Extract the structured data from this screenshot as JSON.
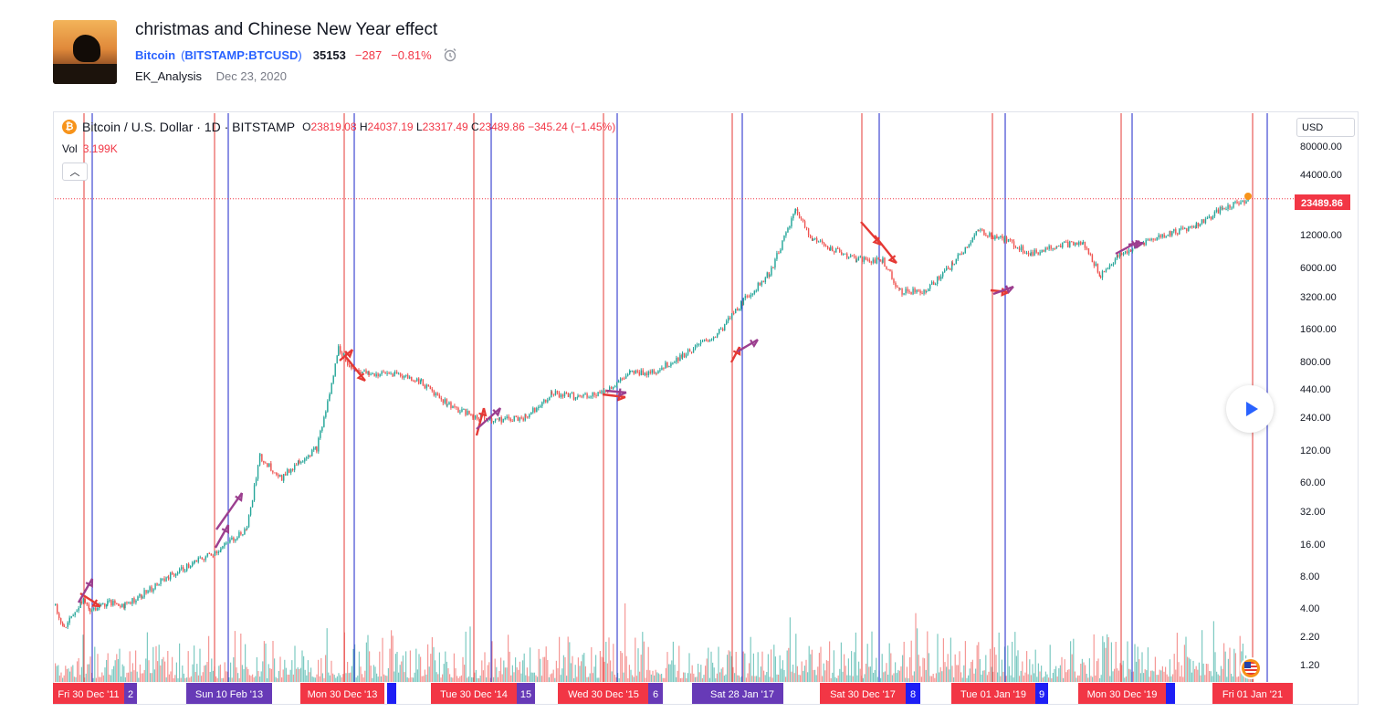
{
  "idea": {
    "title": "christmas and Chinese New Year effect",
    "symbol_name": "Bitcoin",
    "symbol_exchange": "BITSTAMP:BTCUSD",
    "price": "35153",
    "change": "−287",
    "change_pct": "−0.81%",
    "author": "EK_Analysis",
    "date": "Dec 23, 2020",
    "alarm_icon": "alarm-clock-icon"
  },
  "chart": {
    "legend_symbol": "Bitcoin / U.S. Dollar · 1D · BITSTAMP",
    "o_label": "O",
    "o_value": "23819.08",
    "h_label": "H",
    "h_value": "24037.19",
    "l_label": "L",
    "l_value": "23317.49",
    "c_label": "C",
    "c_value": "23489.86",
    "change": "−345.24 (−1.45%)",
    "vol_label": "Vol",
    "vol_value": "3.199K",
    "currency": "USD",
    "last_price": "23489.86",
    "collapse_icon": "chevron-up-icon",
    "play_icon": "play-icon",
    "colors": {
      "up": "#26a69a",
      "down": "#ef5350",
      "red_line": "#e53935",
      "blue_line": "#1a23c9",
      "purple_arrow": "#9c3f8f",
      "red_arrow": "#e53935",
      "red_label": "#f23645",
      "purple_label": "#673ab7",
      "blue_label": "#1e1ef5"
    }
  },
  "chart_data": {
    "type": "candlestick",
    "scale": "log",
    "title": "Bitcoin / U.S. Dollar · 1D · BITSTAMP",
    "y_ticks": [
      "80000.00",
      "44000.00",
      "12000.00",
      "6000.00",
      "3200.00",
      "1600.00",
      "800.00",
      "440.00",
      "240.00",
      "120.00",
      "60.00",
      "32.00",
      "16.00",
      "8.00",
      "4.00",
      "2.20",
      "1.20"
    ],
    "y_tick_values": [
      80000,
      44000,
      12000,
      6000,
      3200,
      1600,
      800,
      440,
      240,
      120,
      60,
      32,
      16,
      8,
      4,
      2.2,
      1.2
    ],
    "last_price": 23489.86,
    "price_path": [
      [
        0,
        5
      ],
      [
        0.01,
        3
      ],
      [
        0.03,
        5.5
      ],
      [
        0.04,
        4.5
      ],
      [
        0.06,
        5.2
      ],
      [
        0.08,
        5
      ],
      [
        0.1,
        6.2
      ],
      [
        0.13,
        9
      ],
      [
        0.16,
        12
      ],
      [
        0.19,
        16
      ],
      [
        0.22,
        25
      ],
      [
        0.235,
        110
      ],
      [
        0.26,
        70
      ],
      [
        0.28,
        100
      ],
      [
        0.3,
        130
      ],
      [
        0.315,
        400
      ],
      [
        0.325,
        1050
      ],
      [
        0.34,
        700
      ],
      [
        0.36,
        600
      ],
      [
        0.39,
        620
      ],
      [
        0.42,
        520
      ],
      [
        0.45,
        330
      ],
      [
        0.48,
        250
      ],
      [
        0.51,
        235
      ],
      [
        0.54,
        250
      ],
      [
        0.57,
        410
      ],
      [
        0.6,
        380
      ],
      [
        0.63,
        420
      ],
      [
        0.66,
        620
      ],
      [
        0.69,
        650
      ],
      [
        0.72,
        900
      ],
      [
        0.76,
        1400
      ],
      [
        0.79,
        2800
      ],
      [
        0.82,
        5000
      ],
      [
        0.85,
        18500
      ],
      [
        0.87,
        10000
      ],
      [
        0.89,
        8500
      ],
      [
        0.92,
        6600
      ],
      [
        0.95,
        6500
      ],
      [
        0.97,
        3400
      ],
      [
        1.0,
        3500
      ],
      [
        1.03,
        6000
      ],
      [
        1.06,
        12000
      ],
      [
        1.09,
        10000
      ],
      [
        1.12,
        7500
      ],
      [
        1.15,
        9000
      ],
      [
        1.18,
        9200
      ],
      [
        1.2,
        4800
      ],
      [
        1.22,
        7000
      ],
      [
        1.25,
        9500
      ],
      [
        1.28,
        11500
      ],
      [
        1.31,
        13500
      ],
      [
        1.34,
        19000
      ],
      [
        1.37,
        23489.86
      ]
    ],
    "event_labels": [
      {
        "text": "Fri 30 Dec '11",
        "kind": "red"
      },
      {
        "text": "2",
        "kind": "purple"
      },
      {
        "text": "Sun 10 Feb '13",
        "kind": "purple"
      },
      {
        "text": "Mon 30 Dec '13",
        "kind": "red"
      },
      {
        "text": "Tue 30 Dec '14",
        "kind": "red"
      },
      {
        "text": "15",
        "kind": "purple"
      },
      {
        "text": "Wed 30 Dec '15",
        "kind": "red"
      },
      {
        "text": "6",
        "kind": "purple"
      },
      {
        "text": "Sat 28 Jan '17",
        "kind": "purple"
      },
      {
        "text": "Sat 30 Dec '17",
        "kind": "red"
      },
      {
        "text": "8",
        "kind": "blue"
      },
      {
        "text": "Tue 01 Jan '19",
        "kind": "red"
      },
      {
        "text": "9",
        "kind": "blue"
      },
      {
        "text": "Mon 30 Dec '19",
        "kind": "red"
      },
      {
        "text": "Fri 01 Jan '21",
        "kind": "red"
      }
    ]
  }
}
